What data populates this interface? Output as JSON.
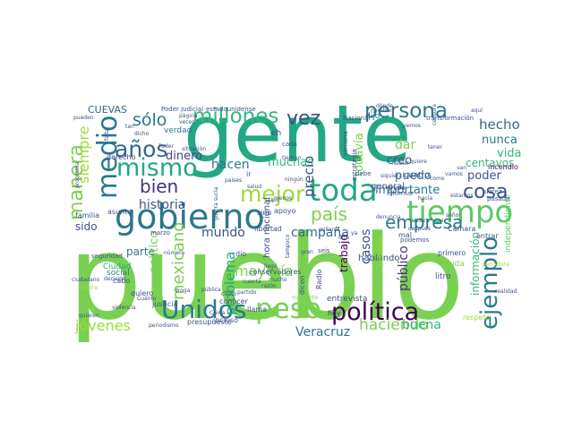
{
  "cloud": {
    "words": [
      {
        "text": "pueblo",
        "color": "#7ad151"
      },
      {
        "text": "gente",
        "color": "#22a884"
      },
      {
        "text": "gobierno",
        "color": "#2a788e"
      },
      {
        "text": "tiempo",
        "color": "#5ec962"
      },
      {
        "text": "toda",
        "color": "#22a884"
      },
      {
        "text": "política",
        "color": "#440154"
      },
      {
        "text": "Unidos",
        "color": "#2a788e"
      },
      {
        "text": "peso",
        "color": "#7ad151"
      },
      {
        "text": "ejemplo",
        "color": "#2a788e"
      },
      {
        "text": "medio",
        "color": "#2a788e"
      },
      {
        "text": "mismo",
        "color": "#22a884"
      },
      {
        "text": "años",
        "color": "#31688e"
      },
      {
        "text": "millones",
        "color": "#35b779"
      },
      {
        "text": "persona",
        "color": "#2a788e"
      },
      {
        "text": "manera",
        "color": "#7ad151"
      },
      {
        "text": "bien",
        "color": "#46327e"
      },
      {
        "text": "sólo",
        "color": "#2a788e"
      },
      {
        "text": "país",
        "color": "#7ad151"
      },
      {
        "text": "mejor",
        "color": "#a0da39"
      },
      {
        "text": "empresa",
        "color": "#2a788e"
      },
      {
        "text": "cosa",
        "color": "#3b528b"
      },
      {
        "text": "vez",
        "color": "#3b528b"
      },
      {
        "text": "mexicano",
        "color": "#7ad151"
      },
      {
        "text": "haciendo",
        "color": "#7ad151"
      },
      {
        "text": "jóvenes",
        "color": "#a0da39"
      },
      {
        "text": "mayoría",
        "color": "#7ad151"
      },
      {
        "text": "campaña",
        "color": "#31688e"
      },
      {
        "text": "mundo",
        "color": "#3b528b"
      },
      {
        "text": "Veracruz",
        "color": "#2a788e"
      },
      {
        "text": "buena",
        "color": "#35b779"
      },
      {
        "text": "hecho",
        "color": "#31688e"
      },
      {
        "text": "siempre",
        "color": "#a0da39"
      },
      {
        "text": "historia",
        "color": "#3b528b"
      },
      {
        "text": "dinero",
        "color": "#414487"
      },
      {
        "text": "hacen",
        "color": "#2a788e"
      },
      {
        "text": "muchas",
        "color": "#35b779"
      },
      {
        "text": "precio",
        "color": "#3b528b"
      },
      {
        "text": "todavía",
        "color": "#7ad151"
      },
      {
        "text": "importante",
        "color": "#2a788e"
      },
      {
        "text": "dar",
        "color": "#7ad151"
      },
      {
        "text": "creo",
        "color": "#3b528b"
      },
      {
        "text": "nunca",
        "color": "#2a788e"
      },
      {
        "text": "vida",
        "color": "#35b779"
      },
      {
        "text": "centavos",
        "color": "#35b779"
      },
      {
        "text": "poder",
        "color": "#3b528b"
      },
      {
        "text": "puedo",
        "color": "#31688e"
      },
      {
        "text": "casos",
        "color": "#3b528b"
      },
      {
        "text": "público",
        "color": "#46327e"
      },
      {
        "text": "información",
        "color": "#35b779"
      },
      {
        "text": "problema",
        "color": "#22a884"
      },
      {
        "text": "parte",
        "color": "#2a788e"
      },
      {
        "text": "político",
        "color": "#7ad151"
      },
      {
        "text": "sido",
        "color": "#3b528b"
      },
      {
        "text": "CUEVAS",
        "color": "#31688e"
      },
      {
        "text": "general",
        "color": "#3b528b"
      },
      {
        "text": "cuatro",
        "color": "#3b528b"
      },
      {
        "text": "incendio",
        "color": "#440154"
      },
      {
        "text": "dijo",
        "color": "#31688e"
      },
      {
        "text": "derecho",
        "color": "#414487"
      },
      {
        "text": "verdad",
        "color": "#2a788e"
      },
      {
        "text": "familia",
        "color": "#3b528b"
      },
      {
        "text": "asunto",
        "color": "#3b528b"
      },
      {
        "text": "social",
        "color": "#2a788e"
      },
      {
        "text": "Ciudad",
        "color": "#22a884"
      },
      {
        "text": "cabo",
        "color": "#3b528b"
      },
      {
        "text": "justicia",
        "color": "#3b528b"
      },
      {
        "text": "presupuesto",
        "color": "#3b528b"
      },
      {
        "text": "incluso",
        "color": "#3b528b"
      },
      {
        "text": "conocer",
        "color": "#3b528b"
      },
      {
        "text": "quiero",
        "color": "#3b528b"
      },
      {
        "text": "hora nacional",
        "color": "#3b528b"
      },
      {
        "text": "trabajo",
        "color": "#440154"
      },
      {
        "text": "hablando",
        "color": "#3b528b"
      },
      {
        "text": "entrevista",
        "color": "#3b528b"
      },
      {
        "text": "hoy",
        "color": "#414487"
      },
      {
        "text": "litro",
        "color": "#3b528b"
      },
      {
        "text": "ayuda",
        "color": "#7ad151"
      },
      {
        "text": "primero",
        "color": "#3b528b"
      },
      {
        "text": "entrar",
        "color": "#3b528b"
      },
      {
        "text": "Cámara",
        "color": "#3b528b"
      },
      {
        "text": "independiente",
        "color": "#5ec962"
      },
      {
        "text": "libertad",
        "color": "#3b528b"
      },
      {
        "text": "conservadores",
        "color": "#3b528b"
      },
      {
        "text": "apoyo",
        "color": "#3b528b"
      },
      {
        "text": "sino",
        "color": "#3b528b"
      },
      {
        "text": "ir",
        "color": "#3b528b"
      },
      {
        "text": "marzo",
        "color": "#3b528b"
      },
      {
        "text": "dio",
        "color": "#3b528b"
      },
      {
        "text": "llama",
        "color": "#3b528b"
      },
      {
        "text": "dicen",
        "color": "#3b528b"
      },
      {
        "text": "seis",
        "color": "#3b528b"
      },
      {
        "text": "Radio",
        "color": "#3b528b"
      },
      {
        "text": "periódico",
        "color": "#a0da39"
      },
      {
        "text": "semana",
        "color": "#3b528b"
      },
      {
        "text": "estrategia",
        "color": "#3b528b"
      },
      {
        "text": "debe",
        "color": "#3b528b"
      },
      {
        "text": "informar",
        "color": "#3b528b"
      },
      {
        "text": "grupo",
        "color": "#3b528b"
      },
      {
        "text": "podemos",
        "color": "#3b528b"
      },
      {
        "text": "mal",
        "color": "#3b528b"
      },
      {
        "text": "respeto",
        "color": "#a0da39"
      },
      {
        "text": "Juárez",
        "color": "#3b528b"
      },
      {
        "text": "pasado",
        "color": "#3b528b"
      },
      {
        "text": "estadounidense",
        "color": "#3b528b"
      },
      {
        "text": "Poder Judicial",
        "color": "#3b528b"
      },
      {
        "text": "transformación",
        "color": "#3b528b"
      },
      {
        "text": "Nacional",
        "color": "#3b528b"
      },
      {
        "text": "seguridad",
        "color": "#3b528b"
      },
      {
        "text": "salud",
        "color": "#3b528b"
      },
      {
        "text": "ningún",
        "color": "#3b528b"
      },
      {
        "text": "número",
        "color": "#3b528b"
      },
      {
        "text": "decisión",
        "color": "#3b528b"
      },
      {
        "text": "droga",
        "color": "#3b528b"
      },
      {
        "text": "partido",
        "color": "#3b528b"
      },
      {
        "text": "momento",
        "color": "#7ad151"
      },
      {
        "text": "realidad",
        "color": "#3b528b"
      },
      {
        "text": "después",
        "color": "#3b528b"
      },
      {
        "text": "denuncia",
        "color": "#3b528b"
      },
      {
        "text": "guerra sucia",
        "color": "#3b528b"
      },
      {
        "text": "cierto",
        "color": "#3b528b"
      },
      {
        "text": "siquiera",
        "color": "#3b528b"
      },
      {
        "text": "hablar",
        "color": "#3b528b"
      },
      {
        "text": "vemos",
        "color": "#3b528b"
      },
      {
        "text": "periodista",
        "color": "#a0da39"
      },
      {
        "text": "China",
        "color": "#3b528b"
      },
      {
        "text": "Cuánto",
        "color": "#3b528b"
      },
      {
        "text": "violencia",
        "color": "#3b528b"
      },
      {
        "text": "pública",
        "color": "#3b528b"
      },
      {
        "text": "cuenta",
        "color": "#3b528b"
      },
      {
        "text": "gran",
        "color": "#3b528b"
      },
      {
        "text": "cinco",
        "color": "#3b528b"
      },
      {
        "text": "quieren",
        "color": "#3b528b"
      },
      {
        "text": "ciudadano",
        "color": "#3b528b"
      },
      {
        "text": "Sonora",
        "color": "#a0da39"
      },
      {
        "text": "aquí",
        "color": "#3b528b"
      },
      {
        "text": "nombre",
        "color": "#3b528b"
      },
      {
        "text": "pueden",
        "color": "#3b528b"
      },
      {
        "text": "página",
        "color": "#3b528b"
      },
      {
        "text": "veces",
        "color": "#3b528b"
      },
      {
        "text": "situación",
        "color": "#3b528b"
      },
      {
        "text": "países",
        "color": "#3b528b"
      },
      {
        "text": "tiempo",
        "color": "#3b528b"
      },
      {
        "text": "tipo",
        "color": "#3b528b"
      },
      {
        "text": "menos",
        "color": "#3b528b"
      },
      {
        "text": "llegó",
        "color": "#3b528b"
      },
      {
        "text": "mucho",
        "color": "#3b528b"
      },
      {
        "text": "razón",
        "color": "#3b528b"
      },
      {
        "text": "cada",
        "color": "#3b528b"
      },
      {
        "text": "dicho",
        "color": "#3b528b"
      },
      {
        "text": "tan",
        "color": "#3b528b"
      },
      {
        "text": "falta",
        "color": "#3b528b"
      },
      {
        "text": "dónde",
        "color": "#3b528b"
      },
      {
        "text": "censura",
        "color": "#3b528b"
      },
      {
        "text": "periodismo",
        "color": "#3b528b"
      },
      {
        "text": "millares",
        "color": "#3b528b"
      },
      {
        "text": "hacia",
        "color": "#3b528b"
      },
      {
        "text": "estamos",
        "color": "#3b528b"
      },
      {
        "text": "tener",
        "color": "#3b528b"
      },
      {
        "text": "vamos",
        "color": "#3b528b"
      },
      {
        "text": "van",
        "color": "#3b528b"
      },
      {
        "text": "señor",
        "color": "#3b528b"
      },
      {
        "text": "cómo",
        "color": "#3b528b"
      },
      {
        "text": "quiere",
        "color": "#3b528b"
      },
      {
        "text": "eh",
        "color": "#3b528b"
      },
      {
        "text": "Poder",
        "color": "#3b528b"
      },
      {
        "text": "programa",
        "color": "#3b528b"
      },
      {
        "text": "dice",
        "color": "#3b528b"
      },
      {
        "text": "ya",
        "color": "#3b528b"
      },
      {
        "text": "tampoco",
        "color": "#3b528b"
      }
    ]
  }
}
